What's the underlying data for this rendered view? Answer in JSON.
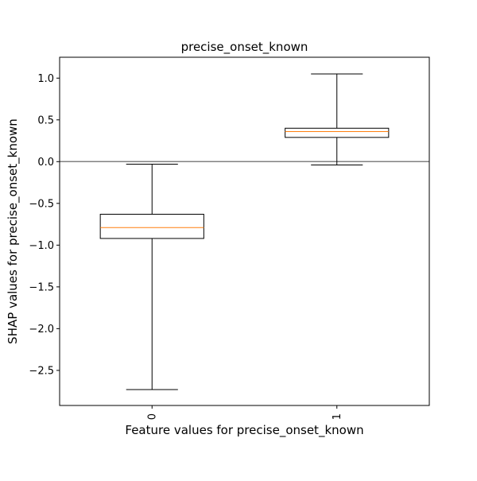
{
  "chart_data": {
    "type": "box",
    "title": "precise_onset_known",
    "xlabel": "Feature values for precise_onset_known",
    "ylabel": "SHAP values for precise_onset_known",
    "categories": [
      "0",
      "1"
    ],
    "boxes": [
      {
        "category": "0",
        "whisker_low": -2.73,
        "q1": -0.92,
        "median": -0.79,
        "q3": -0.63,
        "whisker_high": -0.03
      },
      {
        "category": "1",
        "whisker_low": -0.04,
        "q1": 0.29,
        "median": 0.36,
        "q3": 0.4,
        "whisker_high": 1.05
      }
    ],
    "ylim": [
      -2.92,
      1.25
    ],
    "yticks": [
      1.0,
      0.5,
      0.0,
      -0.5,
      -1.0,
      -1.5,
      -2.0,
      -2.5
    ],
    "ytick_labels": [
      "1.0",
      "0.5",
      "0.0",
      "−0.5",
      "−1.0",
      "−1.5",
      "−2.0",
      "−2.5"
    ],
    "reference_line": {
      "y": 0.0,
      "color": "#808080"
    },
    "x_tick_rotation": "vertical",
    "grid": false,
    "colors": {
      "box_edge": "#000000",
      "median": "#ff7f0e",
      "zero_line": "#808080"
    }
  }
}
